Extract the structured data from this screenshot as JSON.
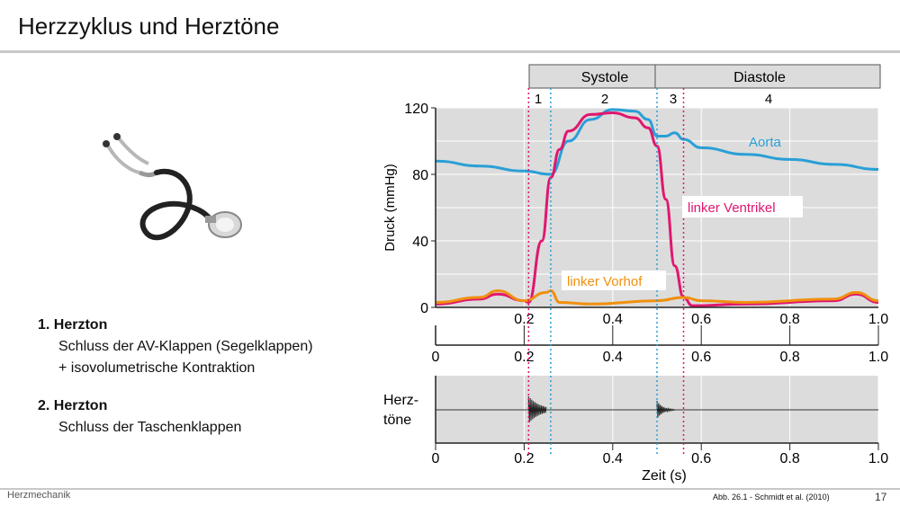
{
  "slide": {
    "title": "Herzzyklus und Herztöne",
    "footer_left": "Herzmechanik",
    "citation": "Abb. 26.1 -  Schmidt et al. (2010)",
    "page_number": "17"
  },
  "illustration": {
    "icon": "stethoscope-icon"
  },
  "points": [
    {
      "heading": "1. Herzton",
      "lines": [
        "Schluss der AV-Klappen (Segelklappen)",
        "+ isovolumetrische Kontraktion"
      ]
    },
    {
      "heading": "2. Herzton",
      "lines": [
        "Schluss der Taschenklappen"
      ]
    }
  ],
  "phases": {
    "labels": [
      "Systole",
      "Diastole"
    ],
    "numbers": [
      "1",
      "2",
      "3",
      "4"
    ],
    "boundaries_s": [
      0.21,
      0.26,
      0.5,
      0.56
    ]
  },
  "colors": {
    "aorta": "#2a9fd6",
    "ventricle": "#e0176f",
    "atrium": "#f0900e",
    "panel": "#dcdcdc",
    "grid": "#ffffff"
  },
  "chart_data": {
    "type": "line",
    "title": "",
    "xlabel": "Zeit (s)",
    "ylabel": "Druck (mmHg)",
    "xlim": [
      0,
      1.0
    ],
    "ylim": [
      0,
      120
    ],
    "x_ticks": [
      "0",
      "0.2",
      "0.4",
      "0.6",
      "0.8",
      "1.0"
    ],
    "y_ticks": [
      "0",
      "40",
      "80",
      "120"
    ],
    "grid": true,
    "series": [
      {
        "name": "Aorta",
        "x": [
          0,
          0.1,
          0.2,
          0.26,
          0.3,
          0.35,
          0.4,
          0.45,
          0.48,
          0.5,
          0.52,
          0.54,
          0.56,
          0.6,
          0.7,
          0.8,
          0.9,
          1.0
        ],
        "y": [
          88,
          85,
          82,
          80,
          100,
          113,
          119,
          118,
          113,
          103,
          103,
          105,
          101,
          96,
          92,
          89,
          86,
          83
        ]
      },
      {
        "name": "linker Ventrikel",
        "x": [
          0,
          0.1,
          0.14,
          0.2,
          0.21,
          0.24,
          0.26,
          0.28,
          0.3,
          0.35,
          0.4,
          0.45,
          0.48,
          0.5,
          0.52,
          0.54,
          0.56,
          0.58,
          0.7,
          0.9,
          0.95,
          1.0
        ],
        "y": [
          2,
          5,
          8,
          4,
          3,
          40,
          78,
          95,
          106,
          116,
          117,
          114,
          108,
          97,
          65,
          25,
          6,
          1,
          2,
          4,
          8,
          3
        ]
      },
      {
        "name": "linker Vorhof",
        "x": [
          0,
          0.1,
          0.14,
          0.2,
          0.25,
          0.26,
          0.28,
          0.35,
          0.5,
          0.56,
          0.6,
          0.7,
          0.9,
          0.95,
          1.0
        ],
        "y": [
          3,
          6,
          10,
          4,
          9,
          10,
          3,
          2,
          4,
          6,
          4,
          3,
          5,
          9,
          4
        ]
      }
    ],
    "panels": [
      {
        "name": "Druck",
        "type": "line"
      },
      {
        "name": "",
        "type": "axis"
      },
      {
        "name": "Herztöne",
        "label_lines": [
          "Herz-",
          "töne"
        ],
        "type": "waveform",
        "sound_bursts_s": [
          [
            0.21,
            0.25
          ],
          [
            0.5,
            0.54
          ]
        ]
      }
    ]
  }
}
